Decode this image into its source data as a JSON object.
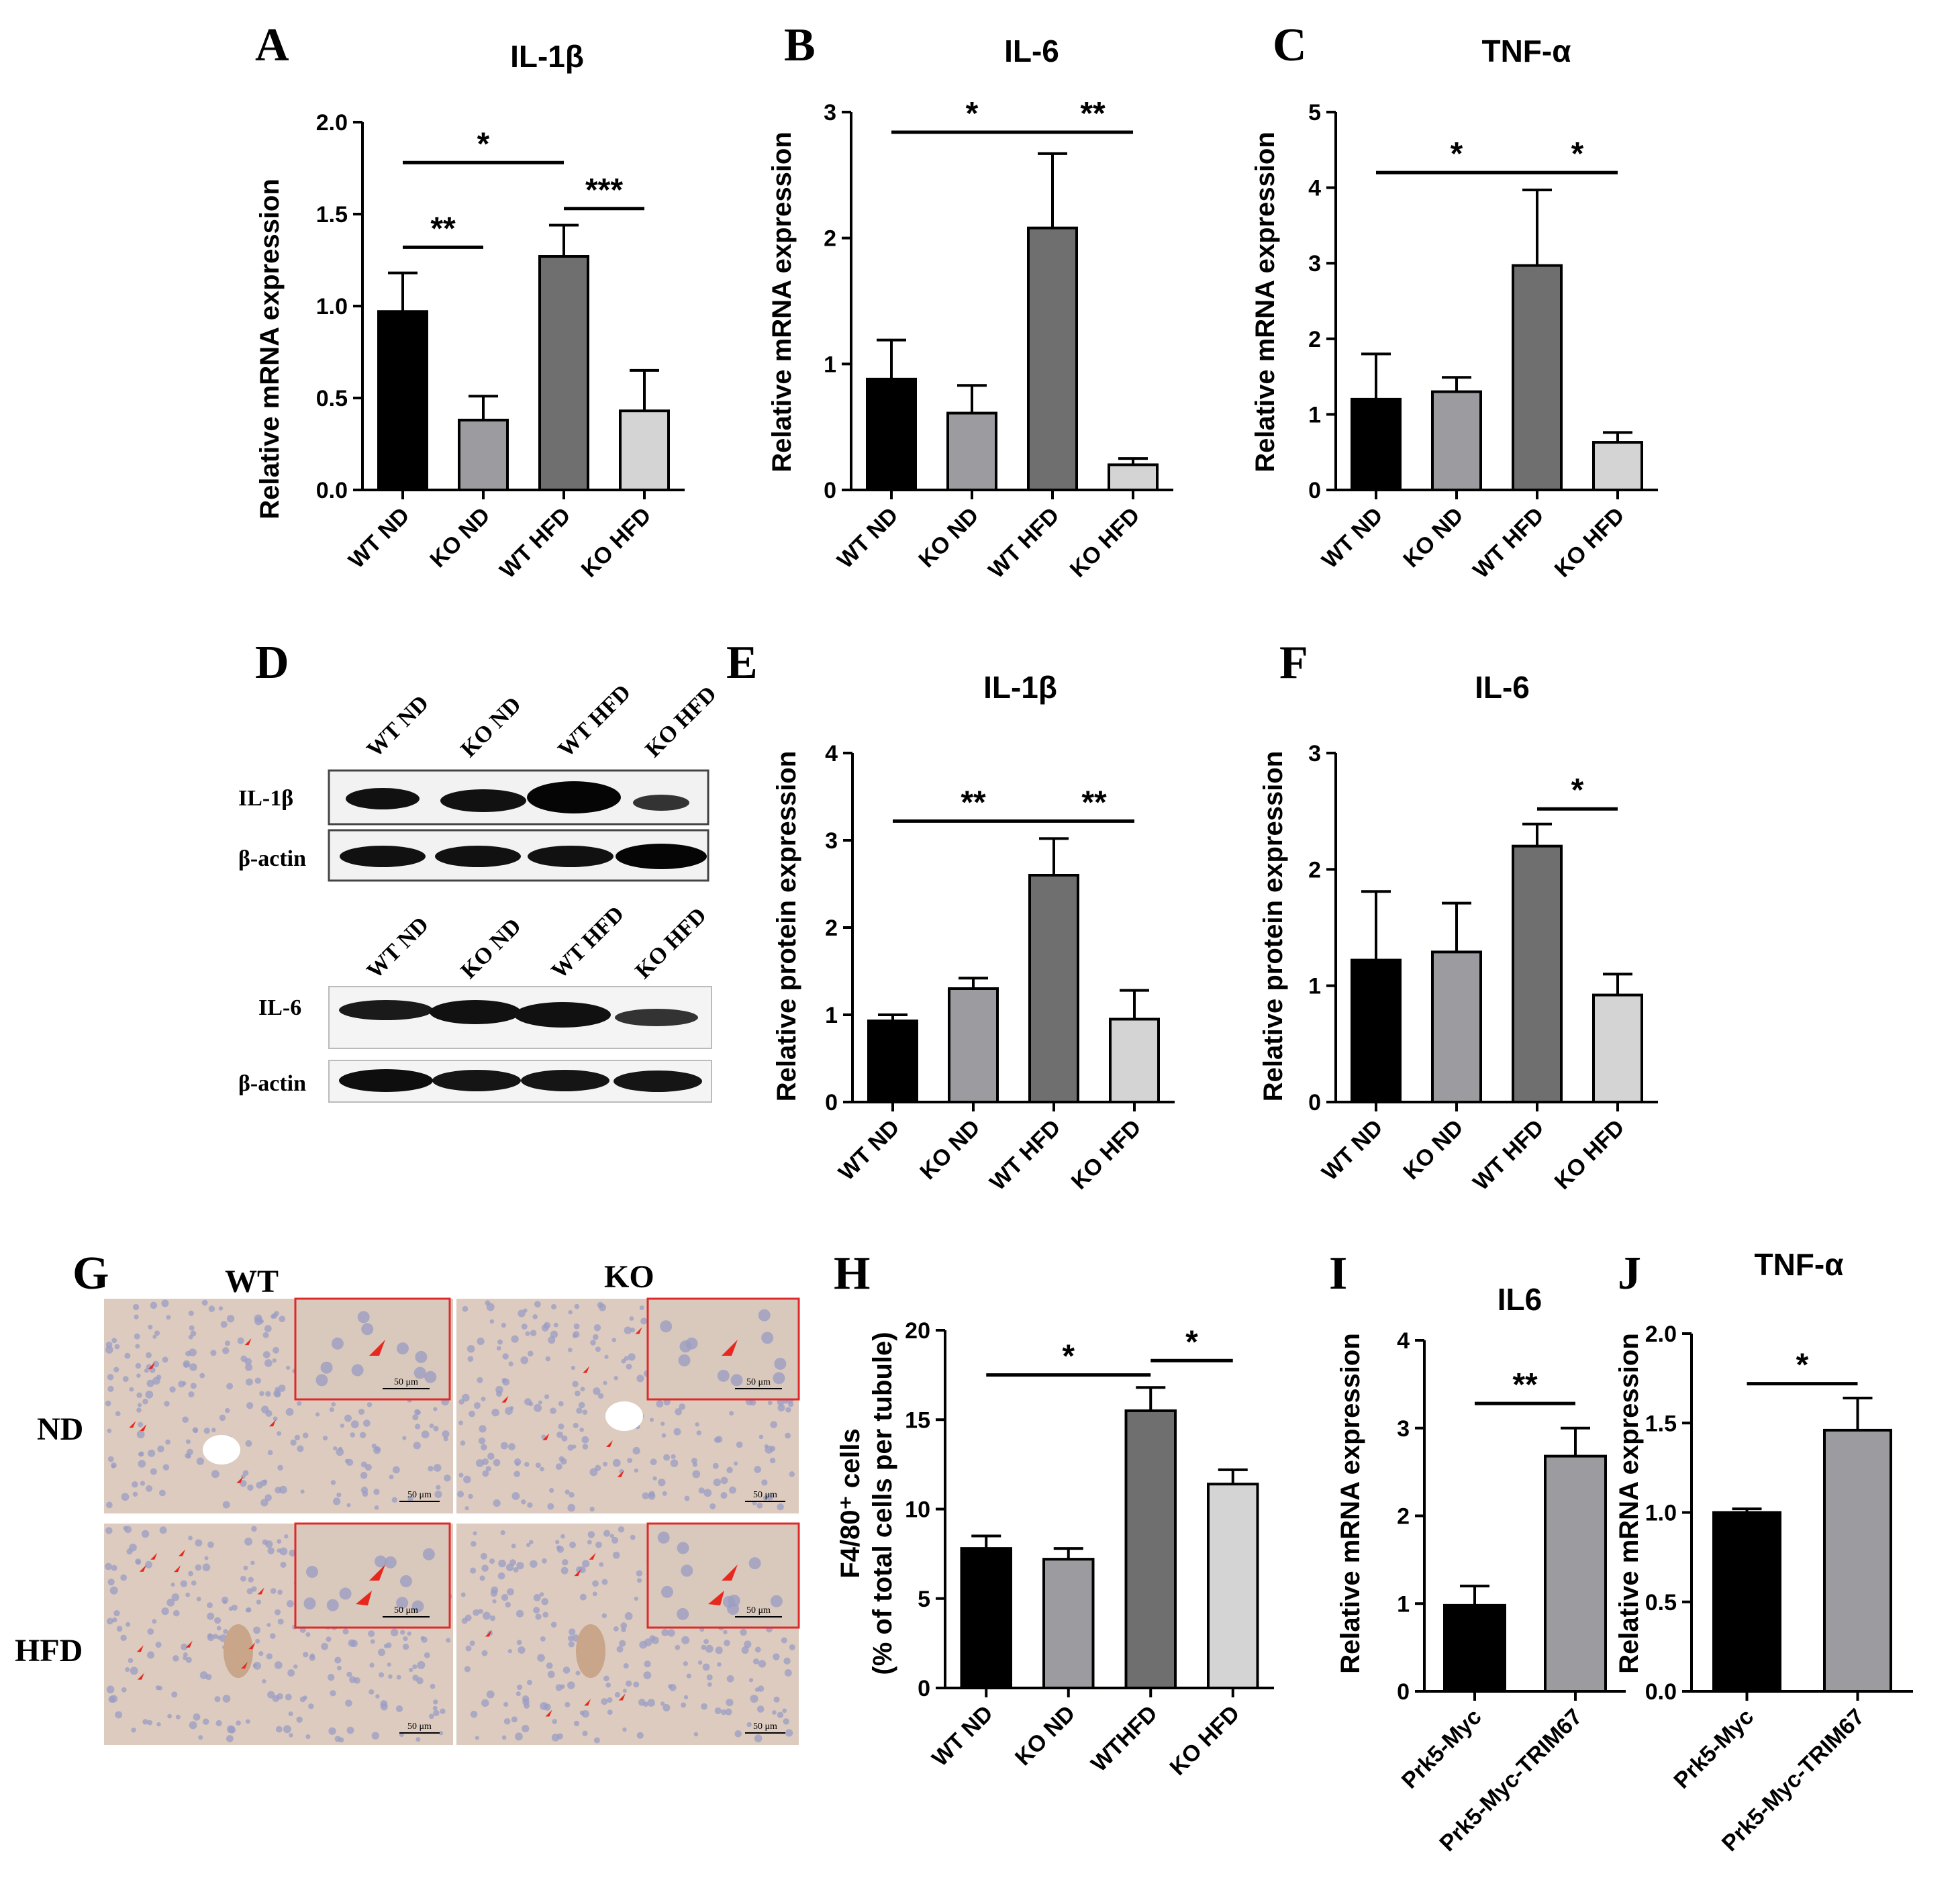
{
  "figure": {
    "panel_labels": [
      "A",
      "B",
      "C",
      "D",
      "E",
      "F",
      "G",
      "H",
      "I",
      "J"
    ],
    "colors": {
      "WT ND": "#000000",
      "KO ND": "#9b9ba0",
      "WT HFD": "#6f6f6f",
      "KO HFD": "#d4d4d4",
      "Prk5-Myc": "#000000",
      "Prk5-Myc-TRIM67": "#9b9ba0",
      "arrow": "#e8281e",
      "inset_border": "#e02a2a",
      "tissue": "#dccbbe"
    }
  },
  "chart_data": [
    {
      "panel": "A",
      "type": "bar",
      "title": "IL-1β",
      "ylabel": "Relative mRNA expression",
      "categories": [
        "WT ND",
        "KO ND",
        "WT HFD",
        "KO HFD"
      ],
      "values": [
        0.97,
        0.38,
        1.27,
        0.43
      ],
      "errors": [
        0.21,
        0.13,
        0.17,
        0.22
      ],
      "ylim": [
        0,
        2.0
      ],
      "yticks": [
        "0.0",
        "0.5",
        "1.0",
        "1.5",
        "2.0"
      ],
      "yticks_values": [
        0,
        0.5,
        1.0,
        1.5,
        2.0
      ],
      "significance": [
        {
          "from": 0,
          "to": 1,
          "label": "**",
          "y": 1.32
        },
        {
          "from": 0,
          "to": 2,
          "label": "*",
          "y": 1.78
        },
        {
          "from": 2,
          "to": 3,
          "label": "***",
          "y": 1.53
        }
      ]
    },
    {
      "panel": "B",
      "type": "bar",
      "title": "IL-6",
      "ylabel": "Relative mRNA expression",
      "categories": [
        "WT ND",
        "KO ND",
        "WT HFD",
        "KO HFD"
      ],
      "values": [
        0.88,
        0.61,
        2.08,
        0.2
      ],
      "errors": [
        0.31,
        0.22,
        0.59,
        0.05
      ],
      "ylim": [
        0,
        3
      ],
      "yticks": [
        "0",
        "1",
        "2",
        "3"
      ],
      "yticks_values": [
        0,
        1,
        2,
        3
      ],
      "significance": [
        {
          "from": 0,
          "to": 2,
          "label": "*",
          "y": 2.84
        },
        {
          "from": 2,
          "to": 3,
          "label": "**",
          "y": 2.84
        }
      ]
    },
    {
      "panel": "C",
      "type": "bar",
      "title": "TNF-α",
      "ylabel": "Relative mRNA expression",
      "categories": [
        "WT ND",
        "KO ND",
        "WT HFD",
        "KO HFD"
      ],
      "values": [
        1.2,
        1.3,
        2.97,
        0.63
      ],
      "errors": [
        0.6,
        0.19,
        1.0,
        0.13
      ],
      "ylim": [
        0,
        5
      ],
      "yticks": [
        "0",
        "1",
        "2",
        "3",
        "4",
        "5"
      ],
      "yticks_values": [
        0,
        1,
        2,
        3,
        4,
        5
      ],
      "significance": [
        {
          "from": 0,
          "to": 2,
          "label": "*",
          "y": 4.2
        },
        {
          "from": 2,
          "to": 3,
          "label": "*",
          "y": 4.2
        }
      ]
    },
    {
      "panel": "E",
      "type": "bar",
      "title": "IL-1β",
      "ylabel": "Relative protein expression",
      "categories": [
        "WT ND",
        "KO ND",
        "WT HFD",
        "KO HFD"
      ],
      "values": [
        0.93,
        1.3,
        2.6,
        0.95
      ],
      "errors": [
        0.07,
        0.12,
        0.42,
        0.33
      ],
      "ylim": [
        0,
        4
      ],
      "yticks": [
        "0",
        "1",
        "2",
        "3",
        "4"
      ],
      "yticks_values": [
        0,
        1,
        2,
        3,
        4
      ],
      "significance": [
        {
          "from": 0,
          "to": 2,
          "label": "**",
          "y": 3.22
        },
        {
          "from": 2,
          "to": 3,
          "label": "**",
          "y": 3.22
        }
      ]
    },
    {
      "panel": "F",
      "type": "bar",
      "title": "IL-6",
      "ylabel": "Relative protein expression",
      "categories": [
        "WT ND",
        "KO ND",
        "WT HFD",
        "KO HFD"
      ],
      "values": [
        1.22,
        1.29,
        2.2,
        0.92
      ],
      "errors": [
        0.59,
        0.42,
        0.19,
        0.18
      ],
      "ylim": [
        0,
        3
      ],
      "yticks": [
        "0",
        "1",
        "2",
        "3"
      ],
      "yticks_values": [
        0,
        1,
        2,
        3
      ],
      "significance": [
        {
          "from": 2,
          "to": 3,
          "label": "*",
          "y": 2.52
        }
      ]
    },
    {
      "panel": "H",
      "type": "bar",
      "title": "",
      "ylabel": "F4/80⁺ cells",
      "ylabel2": "(% of total cells per tubule)",
      "categories": [
        "WT ND",
        "KO ND",
        "WTHFD",
        "KO HFD"
      ],
      "values": [
        7.8,
        7.2,
        15.5,
        11.4
      ],
      "errors": [
        0.7,
        0.6,
        1.3,
        0.8
      ],
      "ylim": [
        0,
        20
      ],
      "yticks": [
        "0",
        "5",
        "10",
        "15",
        "20"
      ],
      "yticks_values": [
        0,
        5,
        10,
        15,
        20
      ],
      "significance": [
        {
          "from": 0,
          "to": 2,
          "label": "*",
          "y": 17.5
        },
        {
          "from": 2,
          "to": 3,
          "label": "*",
          "y": 18.3
        }
      ]
    },
    {
      "panel": "I",
      "type": "bar",
      "title": "IL6",
      "ylabel": "Relative mRNA expression",
      "categories": [
        "Prk5-Myc",
        "Prk5-Myc-TRIM67"
      ],
      "values": [
        0.98,
        2.68
      ],
      "errors": [
        0.22,
        0.32
      ],
      "ylim": [
        0,
        4
      ],
      "yticks": [
        "0",
        "1",
        "2",
        "3",
        "4"
      ],
      "yticks_values": [
        0,
        1,
        2,
        3,
        4
      ],
      "significance": [
        {
          "from": 0,
          "to": 1,
          "label": "**",
          "y": 3.28
        }
      ]
    },
    {
      "panel": "J",
      "type": "bar",
      "title": "TNF-α",
      "ylabel": "Relative mRNA expression",
      "categories": [
        "Prk5-Myc",
        "Prk5-Myc-TRIM67"
      ],
      "values": [
        1.0,
        1.46
      ],
      "errors": [
        0.02,
        0.18
      ],
      "ylim": [
        0,
        2.0
      ],
      "yticks": [
        "0.0",
        "0.5",
        "1.0",
        "1.5",
        "2.0"
      ],
      "yticks_values": [
        0,
        0.5,
        1.0,
        1.5,
        2.0
      ],
      "significance": [
        {
          "from": 0,
          "to": 1,
          "label": "*",
          "y": 1.72
        }
      ]
    }
  ],
  "western_blot": {
    "panel": "D",
    "lanes": [
      "WT ND",
      "KO ND",
      "WT HFD",
      "KO HFD"
    ],
    "rows": [
      {
        "label": "IL-1β"
      },
      {
        "label": "β-actin"
      },
      {
        "label": "IL-6"
      },
      {
        "label": "β-actin"
      }
    ]
  },
  "histology": {
    "panel": "G",
    "columns": [
      "WT",
      "KO"
    ],
    "rows": [
      "ND",
      "HFD"
    ],
    "scale_bar": "50 μm"
  }
}
